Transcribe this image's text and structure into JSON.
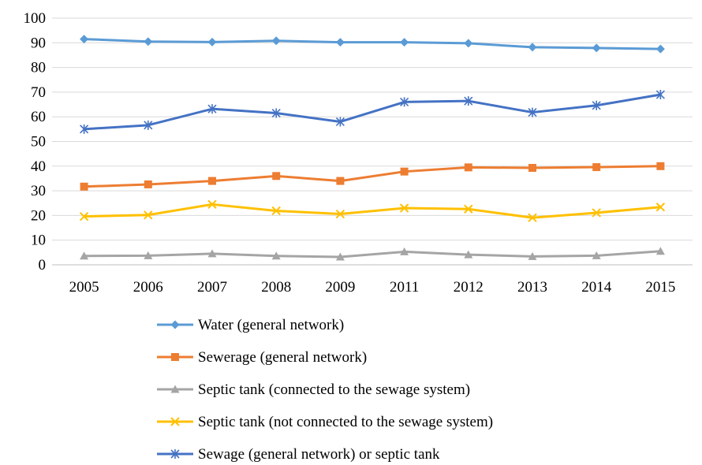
{
  "chart_data": {
    "type": "line",
    "title": "",
    "xlabel": "",
    "ylabel": "",
    "categories": [
      "2005",
      "2006",
      "2007",
      "2008",
      "2009",
      "2011",
      "2012",
      "2013",
      "2014",
      "2015"
    ],
    "ylim": [
      0,
      100
    ],
    "yticks": [
      0,
      10,
      20,
      30,
      40,
      50,
      60,
      70,
      80,
      90,
      100
    ],
    "grid": "horizontal",
    "legend_position": "bottom",
    "series": [
      {
        "name": "Water (general network)",
        "color": "#5B9BD5",
        "marker": "diamond",
        "values": [
          91.5,
          90.5,
          90.3,
          90.8,
          90.2,
          90.2,
          89.8,
          88.2,
          87.9,
          87.5
        ]
      },
      {
        "name": "Sewerage (general network)",
        "color": "#ED7D31",
        "marker": "square",
        "values": [
          31.7,
          32.6,
          34.0,
          36.0,
          34.0,
          37.8,
          39.5,
          39.3,
          39.6,
          40.0
        ]
      },
      {
        "name": "Septic tank (connected to the sewage system)",
        "color": "#A5A5A5",
        "marker": "triangle",
        "values": [
          3.6,
          3.7,
          4.5,
          3.6,
          3.2,
          5.3,
          4.1,
          3.4,
          3.7,
          5.5
        ]
      },
      {
        "name": "Septic tank (not connected to the sewage system)",
        "color": "#FFC000",
        "marker": "x",
        "values": [
          19.6,
          20.2,
          24.5,
          21.9,
          20.6,
          23.0,
          22.6,
          19.1,
          21.1,
          23.4
        ]
      },
      {
        "name": "Sewage (general network) or septic tank",
        "color": "#4472C4",
        "marker": "star",
        "values": [
          55.0,
          56.6,
          63.2,
          61.5,
          58.0,
          66.0,
          66.4,
          61.8,
          64.6,
          69.0
        ]
      }
    ]
  }
}
